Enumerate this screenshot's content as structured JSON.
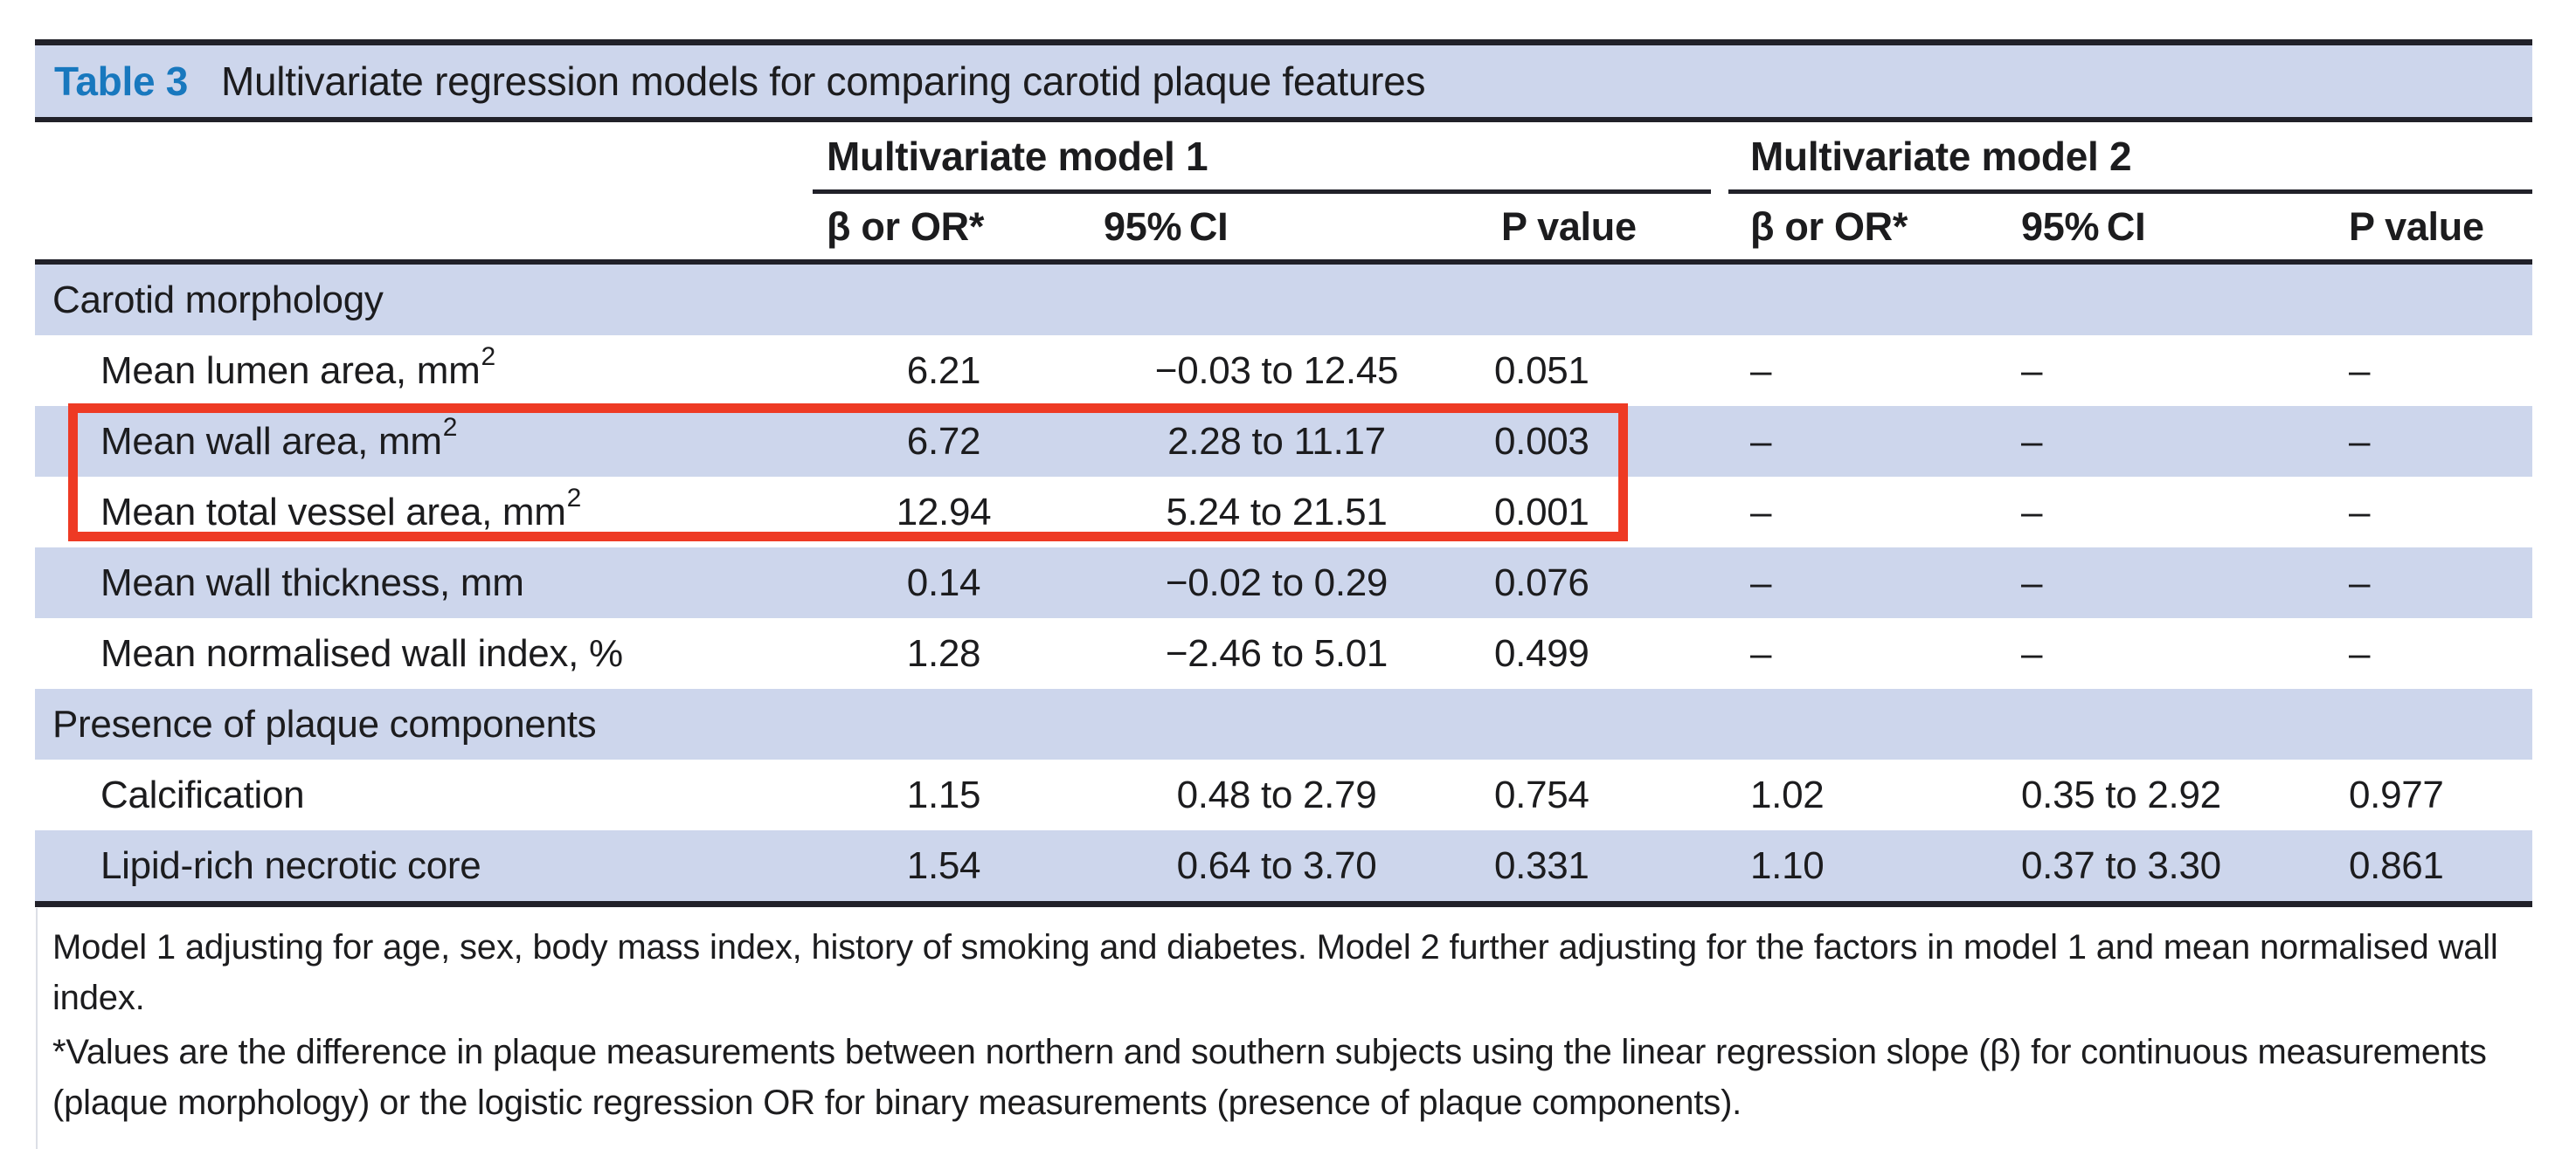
{
  "title": {
    "label": "Table 3",
    "text": "Multivariate regression models for comparing carotid plaque features"
  },
  "header": {
    "group1": "Multivariate model 1",
    "group2": "Multivariate model 2",
    "cols": [
      "β or OR*",
      "95% CI",
      "P value",
      "β or OR*",
      "95% CI",
      "P value"
    ]
  },
  "rows": [
    {
      "type": "section",
      "label": "Carotid morphology",
      "sup": "",
      "m1": [
        "",
        "",
        ""
      ],
      "m2": [
        "",
        "",
        ""
      ]
    },
    {
      "type": "data",
      "label": "Mean lumen area, mm",
      "sup": "2",
      "m1": [
        "6.21",
        "−0.03 to 12.45",
        "0.051"
      ],
      "m2": [
        "–",
        "–",
        "–"
      ]
    },
    {
      "type": "data",
      "label": "Mean wall area, mm",
      "sup": "2",
      "m1": [
        "6.72",
        "2.28 to 11.17",
        "0.003"
      ],
      "m2": [
        "–",
        "–",
        "–"
      ]
    },
    {
      "type": "data",
      "label": "Mean total vessel area, mm",
      "sup": "2",
      "m1": [
        "12.94",
        "5.24 to 21.51",
        "0.001"
      ],
      "m2": [
        "–",
        "–",
        "–"
      ]
    },
    {
      "type": "data",
      "label": "Mean wall thickness, mm",
      "sup": "",
      "m1": [
        "0.14",
        "−0.02 to 0.29",
        "0.076"
      ],
      "m2": [
        "–",
        "–",
        "–"
      ]
    },
    {
      "type": "data",
      "label": "Mean normalised wall index, %",
      "sup": "",
      "m1": [
        "1.28",
        "−2.46 to 5.01",
        "0.499"
      ],
      "m2": [
        "–",
        "–",
        "–"
      ]
    },
    {
      "type": "section",
      "label": "Presence of plaque components",
      "sup": "",
      "m1": [
        "",
        "",
        ""
      ],
      "m2": [
        "",
        "",
        ""
      ]
    },
    {
      "type": "data",
      "label": "Calcification",
      "sup": "",
      "m1": [
        "1.15",
        "0.48 to 2.79",
        "0.754"
      ],
      "m2": [
        "1.02",
        "0.35 to 2.92",
        "0.977"
      ]
    },
    {
      "type": "data",
      "label": "Lipid-rich necrotic core",
      "sup": "",
      "m1": [
        "1.54",
        "0.64 to 3.70",
        "0.331"
      ],
      "m2": [
        "1.10",
        "0.37 to 3.30",
        "0.861"
      ]
    }
  ],
  "footnotes": [
    "Model 1 adjusting for age, sex, body mass index, history of smoking and diabetes. Model 2 further adjusting for the factors in model 1 and mean normalised wall index.",
    "*Values are the difference in plaque measurements between northern and southern subjects using the linear regression slope (β) for continuous measurements (plaque morphology) or the logistic regression OR for binary measurements (presence of plaque components)."
  ],
  "colors": {
    "accent_blue": "#1878be",
    "row_stripe": "#cdd6ec",
    "rule_dark": "#212129",
    "highlight_red": "#ee3a24",
    "text": "#1c1c1e"
  }
}
